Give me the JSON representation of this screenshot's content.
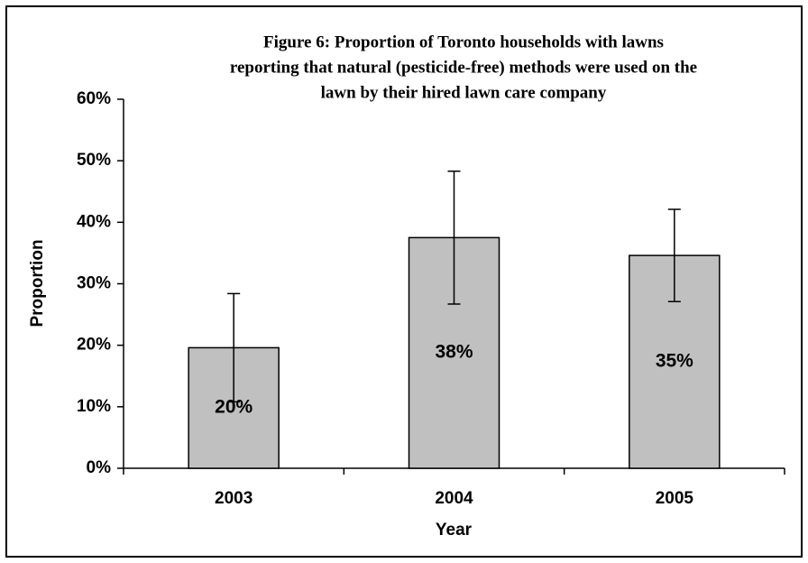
{
  "chart_data": {
    "type": "bar",
    "title": [
      "Figure 6: Proportion of Toronto households with lawns",
      "reporting that natural (pesticide-free) methods were used on the",
      "lawn by their hired lawn care company"
    ],
    "x_label": "Year",
    "y_label": "Proportion",
    "categories": [
      "2003",
      "2004",
      "2005"
    ],
    "values": [
      19.6,
      37.5,
      34.6
    ],
    "errors": [
      8.8,
      10.8,
      7.5
    ],
    "value_labels": [
      "20%",
      "38%",
      "35%"
    ],
    "color": "#c0c0c0",
    "ylim": [
      0,
      60
    ],
    "yticks": [
      {
        "value": 0,
        "label": "0%"
      },
      {
        "value": 10,
        "label": "10%"
      },
      {
        "value": 20,
        "label": "20%"
      },
      {
        "value": 30,
        "label": "30%"
      },
      {
        "value": 40,
        "label": "40%"
      },
      {
        "value": 50,
        "label": "50%"
      },
      {
        "value": 60,
        "label": "60%"
      }
    ],
    "grid": false
  }
}
